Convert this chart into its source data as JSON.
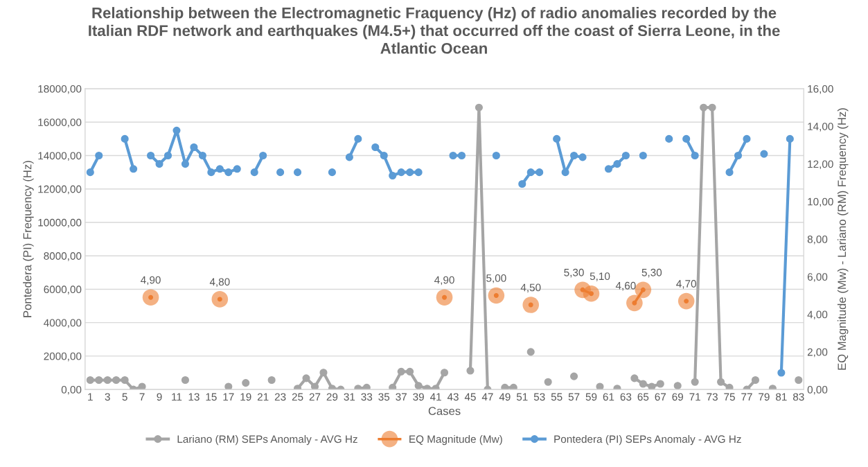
{
  "chart_data": {
    "type": "line",
    "title": "Relationship between the Electromagnetic Fraquency (Hz) of radio anomalies recorded by the\nItalian RDF network and earthquakes (M4.5+) that occurred off the coast of Sierra Leone, in the\nAtlantic Ocean",
    "xlabel": "Cases",
    "ylabel": "Pontedera (PI) Frequency (Hz)",
    "y2label": "EQ Magnitude (Mw) - Lariano (RM) Frequency (Hz)",
    "categories": [
      "1",
      null,
      "3",
      null,
      "5",
      null,
      "7",
      null,
      "9",
      null,
      "11",
      null,
      "13",
      null,
      "15",
      null,
      "17",
      null,
      "19",
      null,
      "21",
      null,
      "23",
      null,
      "25",
      null,
      "27",
      null,
      "29",
      null,
      "31",
      null,
      "33",
      null,
      "35",
      null,
      "37",
      null,
      "39",
      null,
      "41",
      null,
      "43",
      null,
      "45",
      null,
      "47",
      null,
      "49",
      null,
      "51",
      null,
      "53",
      null,
      "55",
      null,
      "57",
      null,
      "59",
      null,
      "61",
      null,
      "63",
      null,
      "65",
      null,
      "67",
      null,
      "69",
      null,
      "71",
      null,
      "73",
      null,
      "75",
      null,
      "77",
      null,
      "79",
      null,
      "81",
      null,
      "83"
    ],
    "series": [
      {
        "name": "Lariano (RM) SEPs Anomaly - AVG Hz",
        "color": "#a5a5a5",
        "axis": "y2",
        "values": [
          0.5,
          0.5,
          0.5,
          0.5,
          0.5,
          0,
          0.15,
          null,
          null,
          null,
          null,
          0.5,
          null,
          null,
          null,
          null,
          0.15,
          null,
          0.35,
          null,
          null,
          0.5,
          null,
          null,
          0.05,
          0.6,
          0.15,
          0.9,
          0.05,
          0,
          null,
          0.05,
          0.1,
          null,
          null,
          0.1,
          0.95,
          0.95,
          0.2,
          0.05,
          0.05,
          0.9,
          null,
          null,
          1.0,
          15,
          0,
          null,
          0.1,
          0.1,
          null,
          2.0,
          null,
          0.4,
          null,
          null,
          0.7,
          null,
          null,
          0.15,
          null,
          0.05,
          null,
          0.6,
          0.3,
          0.15,
          0.3,
          null,
          0.2,
          null,
          0.4,
          15,
          15,
          0.4,
          0.1,
          null,
          0,
          0.5,
          null,
          0.05,
          null,
          null,
          0.5
        ]
      },
      {
        "name": "EQ Magnitude (Mw)",
        "color": "#ed7d31",
        "axis": "y2",
        "values": [
          null,
          null,
          null,
          null,
          null,
          null,
          null,
          4.9,
          null,
          null,
          null,
          null,
          null,
          null,
          null,
          4.8,
          null,
          null,
          null,
          null,
          null,
          null,
          null,
          null,
          null,
          null,
          null,
          null,
          null,
          null,
          null,
          null,
          null,
          null,
          null,
          null,
          null,
          null,
          null,
          null,
          null,
          4.9,
          null,
          null,
          null,
          null,
          null,
          5.0,
          null,
          null,
          null,
          4.5,
          null,
          null,
          null,
          null,
          null,
          5.3,
          5.1,
          null,
          null,
          null,
          null,
          4.6,
          5.3,
          null,
          null,
          null,
          null,
          4.7,
          null,
          null,
          null,
          null,
          null,
          null,
          null,
          null,
          null,
          null,
          null,
          null,
          null
        ],
        "value_labels": [
          null,
          null,
          null,
          null,
          null,
          null,
          null,
          "4,90",
          null,
          null,
          null,
          null,
          null,
          null,
          null,
          "4,80",
          null,
          null,
          null,
          null,
          null,
          null,
          null,
          null,
          null,
          null,
          null,
          null,
          null,
          null,
          null,
          null,
          null,
          null,
          null,
          null,
          null,
          null,
          null,
          null,
          null,
          "4,90",
          null,
          null,
          null,
          null,
          null,
          "5,00",
          null,
          null,
          null,
          "4,50",
          null,
          null,
          null,
          null,
          null,
          "5,30",
          "5,10",
          null,
          null,
          null,
          null,
          "4,60",
          "5,30",
          null,
          null,
          null,
          null,
          "4,70",
          null,
          null,
          null,
          null,
          null,
          null,
          null,
          null,
          null,
          null,
          null,
          null,
          null
        ]
      },
      {
        "name": "Pontedera (PI) SEPs Anomaly - AVG Hz",
        "color": "#5b9bd5",
        "values": [
          13000,
          14000,
          null,
          null,
          15000,
          13200,
          null,
          14000,
          13500,
          14000,
          15500,
          13500,
          14500,
          14000,
          13000,
          13200,
          13000,
          13200,
          null,
          13000,
          14000,
          null,
          13000,
          null,
          13000,
          null,
          null,
          null,
          13000,
          null,
          13900,
          15000,
          null,
          14500,
          14000,
          12800,
          13000,
          13000,
          13000,
          null,
          null,
          null,
          14000,
          14000,
          null,
          null,
          null,
          14000,
          null,
          null,
          12300,
          13000,
          13000,
          null,
          15000,
          13000,
          14000,
          13900,
          null,
          null,
          13200,
          13500,
          14000,
          null,
          14000,
          null,
          null,
          15000,
          null,
          15000,
          14000,
          null,
          null,
          null,
          13000,
          14000,
          15000,
          null,
          14100,
          null,
          1000,
          15000,
          null
        ]
      }
    ],
    "ylim": [
      0,
      18000
    ],
    "yticks": [
      {
        "value": 0,
        "label": "0,00"
      },
      {
        "value": 2000,
        "label": "2000,00"
      },
      {
        "value": 4000,
        "label": "4000,00"
      },
      {
        "value": 6000,
        "label": "6000,00"
      },
      {
        "value": 8000,
        "label": "8000,00"
      },
      {
        "value": 10000,
        "label": "10000,00"
      },
      {
        "value": 12000,
        "label": "12000,00"
      },
      {
        "value": 14000,
        "label": "14000,00"
      },
      {
        "value": 16000,
        "label": "16000,00"
      },
      {
        "value": 18000,
        "label": "18000,00"
      }
    ],
    "y2lim": [
      0,
      16
    ],
    "y2ticks": [
      {
        "value": 0,
        "label": "0,00"
      },
      {
        "value": 2,
        "label": "2,00"
      },
      {
        "value": 4,
        "label": "4,00"
      },
      {
        "value": 6,
        "label": "6,00"
      },
      {
        "value": 8,
        "label": "8,00"
      },
      {
        "value": 10,
        "label": "10,00"
      },
      {
        "value": 12,
        "label": "12,00"
      },
      {
        "value": 14,
        "label": "14,00"
      },
      {
        "value": 16,
        "label": "16,00"
      }
    ],
    "grid": "y",
    "legend": "bottom",
    "marker": "circle",
    "line_style": "solid"
  }
}
